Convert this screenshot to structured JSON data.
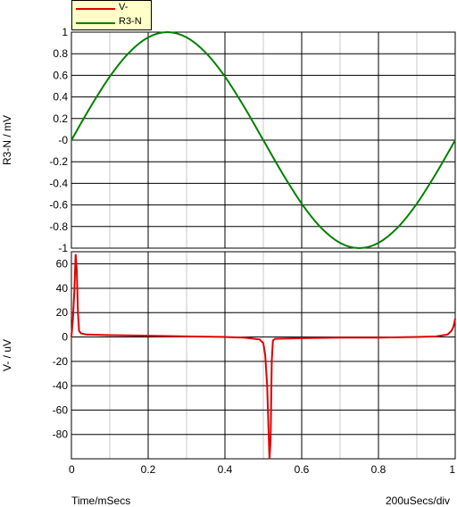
{
  "chart_data": [
    {
      "type": "line",
      "title": "",
      "ylabel": "R3-N / mV",
      "xlabel": "Time/mSecs",
      "xlim": [
        0,
        1
      ],
      "ylim": [
        -1,
        1
      ],
      "x_ticks": [
        "0",
        "0.2",
        "0.4",
        "0.6",
        "0.8",
        "1"
      ],
      "y_ticks": [
        "1",
        "0.8",
        "0.6",
        "0.4",
        "0.2",
        "-0",
        "-0.2",
        "-0.4",
        "-0.6",
        "-0.8",
        "-1"
      ],
      "y_tick_values": [
        1,
        0.8,
        0.6,
        0.4,
        0.2,
        0,
        -0.2,
        -0.4,
        -0.6,
        -0.8,
        -1
      ],
      "grid": true,
      "series": [
        {
          "name": "R3-N",
          "color": "#008000",
          "x": [
            0,
            0.05,
            0.1,
            0.15,
            0.2,
            0.25,
            0.3,
            0.35,
            0.4,
            0.45,
            0.5,
            0.55,
            0.6,
            0.65,
            0.7,
            0.75,
            0.8,
            0.85,
            0.9,
            0.95,
            1
          ],
          "y": [
            0,
            0.309,
            0.588,
            0.809,
            0.951,
            1,
            0.951,
            0.809,
            0.588,
            0.309,
            0,
            -0.309,
            -0.588,
            -0.809,
            -0.951,
            -1,
            -0.951,
            -0.809,
            -0.588,
            -0.309,
            0
          ]
        }
      ]
    },
    {
      "type": "line",
      "title": "",
      "ylabel": "V- / uV",
      "xlabel": "Time/mSecs",
      "xlim": [
        0,
        1
      ],
      "ylim": [
        -100,
        70
      ],
      "x_ticks": [
        "0",
        "0.2",
        "0.4",
        "0.6",
        "0.8",
        "1"
      ],
      "y_ticks": [
        "60",
        "40",
        "20",
        "0",
        "-20",
        "-40",
        "-60",
        "-80"
      ],
      "y_tick_values": [
        60,
        40,
        20,
        0,
        -20,
        -40,
        -60,
        -80
      ],
      "grid": true,
      "series": [
        {
          "name": "V-",
          "color": "#e00000",
          "x": [
            0,
            0.004,
            0.008,
            0.011,
            0.014,
            0.017,
            0.02,
            0.025,
            0.04,
            0.1,
            0.2,
            0.3,
            0.4,
            0.45,
            0.49,
            0.5,
            0.505,
            0.51,
            0.513,
            0.516,
            0.519,
            0.522,
            0.525,
            0.53,
            0.6,
            0.7,
            0.8,
            0.9,
            0.95,
            0.98,
            0.99,
            0.995,
            1
          ],
          "y": [
            0,
            15,
            40,
            68,
            55,
            20,
            5,
            3,
            2,
            1.5,
            1,
            0.5,
            0,
            -0.5,
            -2,
            -5,
            -15,
            -40,
            -70,
            -100,
            -85,
            -20,
            -3,
            -1.5,
            -1,
            -0.5,
            -0.5,
            0,
            0.5,
            2,
            5,
            8,
            15
          ]
        }
      ]
    }
  ],
  "footer": {
    "left_label": "Time/mSecs",
    "right_label": "200uSecs/div"
  }
}
